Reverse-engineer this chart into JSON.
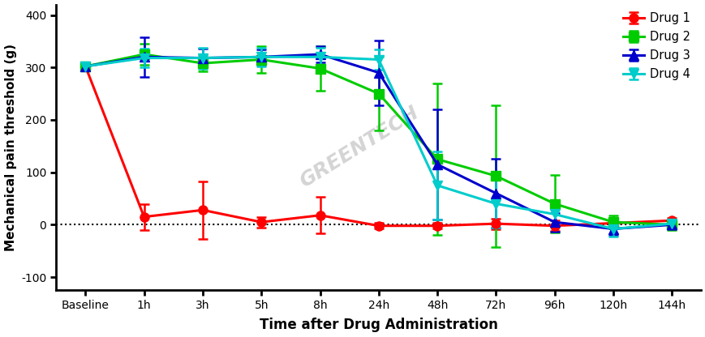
{
  "x_labels": [
    "Baseline",
    "1h",
    "3h",
    "5h",
    "8h",
    "24h",
    "48h",
    "72h",
    "96h",
    "120h",
    "144h"
  ],
  "x_positions": [
    0,
    1,
    2,
    3,
    4,
    5,
    6,
    7,
    8,
    9,
    10
  ],
  "drug1": {
    "color": "#FF0000",
    "marker": "o",
    "label": "Drug 1",
    "y": [
      302,
      15,
      28,
      5,
      18,
      -2,
      -2,
      2,
      -2,
      3,
      8
    ],
    "yerr": [
      5,
      25,
      55,
      10,
      35,
      5,
      5,
      10,
      10,
      8,
      5
    ]
  },
  "drug2": {
    "color": "#00CC00",
    "marker": "s",
    "label": "Drug 2",
    "y": [
      302,
      325,
      308,
      315,
      298,
      250,
      125,
      93,
      40,
      5,
      0
    ],
    "yerr": [
      5,
      20,
      15,
      25,
      42,
      70,
      145,
      135,
      55,
      12,
      10
    ]
  },
  "drug3": {
    "color": "#0000CC",
    "marker": "^",
    "label": "Drug 3",
    "y": [
      302,
      320,
      318,
      320,
      325,
      290,
      115,
      60,
      5,
      -8,
      0
    ],
    "yerr": [
      5,
      38,
      18,
      15,
      15,
      62,
      105,
      65,
      18,
      12,
      8
    ]
  },
  "drug4": {
    "color": "#00CCCC",
    "marker": "v",
    "label": "Drug 4",
    "y": [
      302,
      318,
      318,
      320,
      320,
      315,
      75,
      40,
      20,
      -8,
      2
    ],
    "yerr": [
      5,
      18,
      20,
      18,
      18,
      20,
      65,
      45,
      20,
      15,
      8
    ]
  },
  "ylabel": "Mechanical pain threshold (g)",
  "xlabel": "Time after Drug Administration",
  "ylim": [
    -125,
    420
  ],
  "yticks": [
    -100,
    0,
    100,
    200,
    300,
    400
  ],
  "watermark": "GREENTECH",
  "background_color": "#FFFFFF",
  "linewidth": 2.2,
  "markersize": 8,
  "capsize": 4,
  "elinewidth": 1.8
}
